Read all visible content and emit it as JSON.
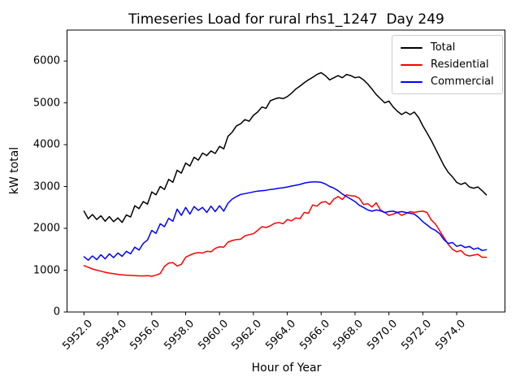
{
  "title": "Timeseries Load for rural rhs1_1247  Day 249",
  "xlabel": "Hour of Year",
  "ylabel": "kW total",
  "legend": {
    "entries": [
      {
        "label": "Total",
        "color": "#000000"
      },
      {
        "label": "Residential",
        "color": "#ff0000"
      },
      {
        "label": "Commercial",
        "color": "#0000ff"
      }
    ]
  },
  "chart_data": {
    "type": "line",
    "title": "Timeseries Load for rural rhs1_1247  Day 249",
    "xlabel": "Hour of Year",
    "ylabel": "kW total",
    "grid": false,
    "legend_position": "upper right",
    "xlim": [
      5951.0,
      5976.85
    ],
    "ylim": [
      0,
      6740
    ],
    "xticks": [
      "5952.0",
      "5954.0",
      "5956.0",
      "5958.0",
      "5960.0",
      "5962.0",
      "5964.0",
      "5966.0",
      "5968.0",
      "5970.0",
      "5972.0",
      "5974.0"
    ],
    "yticks": [
      0,
      1000,
      2000,
      3000,
      4000,
      5000,
      6000
    ],
    "x": [
      5952.0,
      5952.25,
      5952.5,
      5952.75,
      5953.0,
      5953.25,
      5953.5,
      5953.75,
      5954.0,
      5954.25,
      5954.5,
      5954.75,
      5955.0,
      5955.25,
      5955.5,
      5955.75,
      5956.0,
      5956.25,
      5956.5,
      5956.75,
      5957.0,
      5957.25,
      5957.5,
      5957.75,
      5958.0,
      5958.25,
      5958.5,
      5958.75,
      5959.0,
      5959.25,
      5959.5,
      5959.75,
      5960.0,
      5960.25,
      5960.5,
      5960.75,
      5961.0,
      5961.25,
      5961.5,
      5961.75,
      5962.0,
      5962.25,
      5962.5,
      5962.75,
      5963.0,
      5963.25,
      5963.5,
      5963.75,
      5964.0,
      5964.25,
      5964.5,
      5964.75,
      5965.0,
      5965.25,
      5965.5,
      5965.75,
      5966.0,
      5966.25,
      5966.5,
      5966.75,
      5967.0,
      5967.25,
      5967.5,
      5967.75,
      5968.0,
      5968.25,
      5968.5,
      5968.75,
      5969.0,
      5969.25,
      5969.5,
      5969.75,
      5970.0,
      5970.25,
      5970.5,
      5970.75,
      5971.0,
      5971.25,
      5971.5,
      5971.75,
      5972.0,
      5972.25,
      5972.5,
      5972.75,
      5973.0,
      5973.25,
      5973.5,
      5973.75,
      5974.0,
      5974.25,
      5974.5,
      5974.75,
      5975.0,
      5975.25,
      5975.5,
      5975.75
    ],
    "series": [
      {
        "name": "Total",
        "color": "#000000",
        "values": [
          2410,
          2230,
          2330,
          2210,
          2300,
          2170,
          2280,
          2160,
          2250,
          2140,
          2320,
          2270,
          2540,
          2470,
          2640,
          2580,
          2870,
          2800,
          3000,
          2930,
          3170,
          3100,
          3390,
          3320,
          3560,
          3490,
          3700,
          3630,
          3800,
          3740,
          3850,
          3790,
          3960,
          3900,
          4200,
          4300,
          4450,
          4500,
          4600,
          4560,
          4700,
          4780,
          4900,
          4870,
          5050,
          5090,
          5120,
          5100,
          5150,
          5230,
          5330,
          5400,
          5480,
          5550,
          5610,
          5680,
          5720,
          5650,
          5550,
          5600,
          5650,
          5600,
          5680,
          5650,
          5600,
          5620,
          5550,
          5450,
          5330,
          5200,
          5100,
          5000,
          5040,
          4900,
          4800,
          4720,
          4780,
          4720,
          4780,
          4650,
          4450,
          4280,
          4100,
          3900,
          3700,
          3500,
          3340,
          3230,
          3100,
          3050,
          3090,
          2990,
          2960,
          2990,
          2900,
          2800
        ]
      },
      {
        "name": "Residential",
        "color": "#ff0000",
        "values": [
          1110,
          1070,
          1030,
          1000,
          975,
          950,
          930,
          915,
          900,
          890,
          880,
          875,
          870,
          865,
          862,
          868,
          855,
          880,
          920,
          1090,
          1170,
          1180,
          1100,
          1140,
          1310,
          1360,
          1400,
          1420,
          1410,
          1450,
          1440,
          1520,
          1560,
          1550,
          1670,
          1710,
          1730,
          1740,
          1820,
          1850,
          1870,
          1950,
          2040,
          2020,
          2060,
          2120,
          2140,
          2110,
          2210,
          2180,
          2250,
          2230,
          2380,
          2360,
          2560,
          2530,
          2620,
          2640,
          2570,
          2700,
          2760,
          2690,
          2800,
          2780,
          2770,
          2720,
          2570,
          2590,
          2510,
          2610,
          2440,
          2380,
          2310,
          2340,
          2380,
          2310,
          2350,
          2400,
          2380,
          2400,
          2410,
          2380,
          2200,
          2100,
          1940,
          1780,
          1620,
          1500,
          1440,
          1470,
          1370,
          1340,
          1360,
          1380,
          1310,
          1310
        ]
      },
      {
        "name": "Commercial",
        "color": "#0000ff",
        "values": [
          1320,
          1240,
          1340,
          1250,
          1370,
          1270,
          1390,
          1300,
          1410,
          1330,
          1450,
          1390,
          1550,
          1480,
          1640,
          1720,
          1950,
          1880,
          2110,
          2040,
          2240,
          2170,
          2460,
          2310,
          2500,
          2340,
          2520,
          2430,
          2500,
          2380,
          2530,
          2400,
          2540,
          2410,
          2600,
          2700,
          2760,
          2810,
          2830,
          2850,
          2870,
          2890,
          2900,
          2910,
          2930,
          2940,
          2960,
          2970,
          2990,
          3010,
          3030,
          3050,
          3080,
          3100,
          3110,
          3110,
          3100,
          3060,
          3000,
          2960,
          2900,
          2820,
          2760,
          2700,
          2640,
          2550,
          2500,
          2440,
          2410,
          2440,
          2420,
          2380,
          2400,
          2410,
          2380,
          2400,
          2380,
          2360,
          2340,
          2260,
          2160,
          2080,
          2000,
          1950,
          1870,
          1730,
          1640,
          1660,
          1570,
          1600,
          1540,
          1570,
          1500,
          1530,
          1470,
          1490
        ]
      }
    ]
  }
}
